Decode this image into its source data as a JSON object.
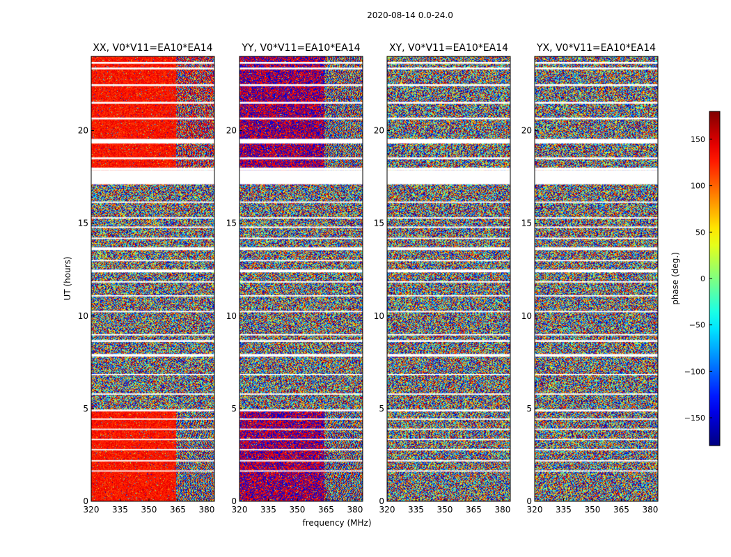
{
  "chart_data": {
    "type": "heatmap",
    "suptitle": "2020-08-14 0.0-24.0",
    "xlabel": "frequency (MHz)",
    "ylabel": "UT (hours)",
    "xlim": [
      320,
      384
    ],
    "ylim": [
      0,
      24
    ],
    "x_ticks": [
      320,
      335,
      350,
      365,
      380
    ],
    "y_ticks": [
      0,
      5,
      10,
      15,
      20
    ],
    "panels": [
      {
        "title": "XX, V0*V11=EA10*EA14",
        "mode": "red_coherent"
      },
      {
        "title": "YY, V0*V11=EA10*EA14",
        "mode": "bimodal_coherent"
      },
      {
        "title": "XY, V0*V11=EA10*EA14",
        "mode": "noise"
      },
      {
        "title": "YX, V0*V11=EA10*EA14",
        "mode": "noise"
      }
    ],
    "coherent_boundary_mhz": 364,
    "coherent_time_ranges_hours": [
      [
        0,
        4.9
      ],
      [
        17.1,
        24
      ]
    ],
    "gaps_hours": [
      [
        23.6,
        23.7
      ],
      [
        23.3,
        23.4
      ],
      [
        22.4,
        22.5
      ],
      [
        21.45,
        21.55
      ],
      [
        20.6,
        20.7
      ],
      [
        19.3,
        19.55
      ],
      [
        18.45,
        18.55
      ],
      [
        17.85,
        18.0
      ],
      [
        17.1,
        17.85
      ],
      [
        16.1,
        16.17
      ],
      [
        15.25,
        15.32
      ],
      [
        14.75,
        14.82
      ],
      [
        14.15,
        14.22
      ],
      [
        13.55,
        13.7
      ],
      [
        12.95,
        13.02
      ],
      [
        12.35,
        12.5
      ],
      [
        11.8,
        11.87
      ],
      [
        11.05,
        11.12
      ],
      [
        10.2,
        10.27
      ],
      [
        8.95,
        9.02
      ],
      [
        8.6,
        8.7
      ],
      [
        7.8,
        7.95
      ],
      [
        6.8,
        6.87
      ],
      [
        5.75,
        5.82
      ],
      [
        4.85,
        4.95
      ],
      [
        4.4,
        4.47
      ],
      [
        3.85,
        3.92
      ],
      [
        3.3,
        3.37
      ],
      [
        2.75,
        2.82
      ],
      [
        2.15,
        2.22
      ],
      [
        1.6,
        1.67
      ]
    ],
    "colorbar": {
      "label": "phase (deg.)",
      "range": [
        -180,
        180
      ],
      "ticks": [
        150,
        100,
        50,
        0,
        -50,
        -100,
        -150
      ],
      "tick_labels": [
        "150",
        "100",
        "50",
        "0",
        "−50",
        "−100",
        "−150"
      ],
      "colormap": "jet"
    }
  }
}
